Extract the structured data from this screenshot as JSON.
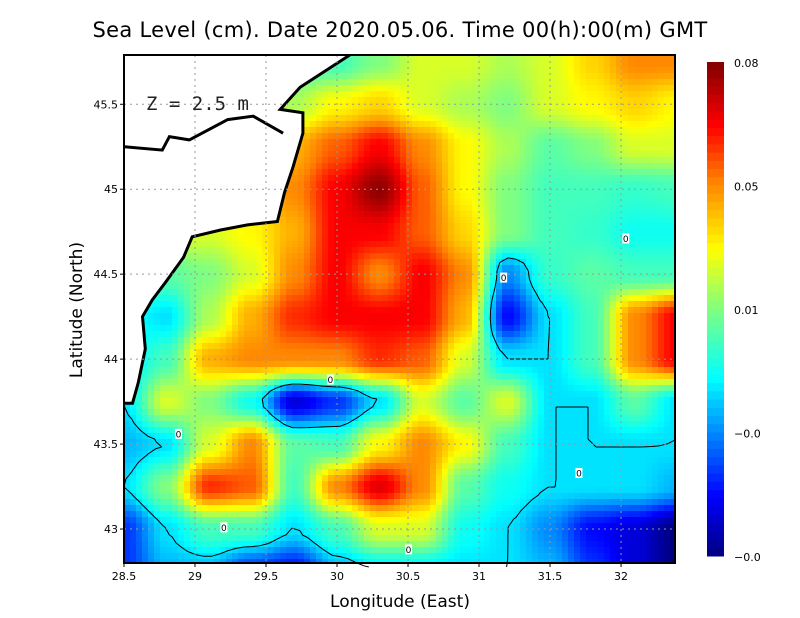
{
  "chart_data": {
    "type": "heatmap",
    "title": "Sea Level (cm). Date 2020.05.06. Time 00(h):00(m) GMT",
    "xlabel": "Longitude (East)",
    "ylabel": "Latitude (North)",
    "annotation": "Z = 2.5 m",
    "xlim": [
      28.5,
      32.38
    ],
    "ylim": [
      42.8,
      45.79
    ],
    "x_ticks": [
      "28.5",
      "29",
      "29.5",
      "30",
      "30.5",
      "31",
      "31.5",
      "32"
    ],
    "x_tick_values": [
      28.5,
      29,
      29.5,
      30,
      30.5,
      31,
      31.5,
      32
    ],
    "y_ticks": [
      "43",
      "43.5",
      "44",
      "44.5",
      "45",
      "45.5"
    ],
    "y_tick_values": [
      43,
      43.5,
      44,
      44.5,
      45,
      45.5
    ],
    "grid": true,
    "colorbar": {
      "labels": [
        "0.08",
        "0.05",
        "0.01",
        "−0.0",
        "−0.0"
      ],
      "range": [
        -0.04,
        0.08
      ],
      "colormap": [
        "#000080",
        "#0000ff",
        "#00ffff",
        "#80ff80",
        "#ffff00",
        "#ff8000",
        "#ff0000",
        "#800000"
      ]
    },
    "grid_lons": [
      28.5,
      28.8,
      29.1,
      29.4,
      29.7,
      30.0,
      30.3,
      30.6,
      30.9,
      31.2,
      31.5,
      31.8,
      32.1,
      32.4
    ],
    "grid_lats": [
      45.75,
      45.5,
      45.25,
      45.0,
      44.75,
      44.5,
      44.25,
      44.0,
      43.75,
      43.5,
      43.25,
      43.0,
      42.75
    ],
    "values": [
      [
        0.012,
        0.012,
        0.012,
        0.012,
        0.012,
        0.012,
        0.02,
        0.03,
        0.03,
        0.025,
        0.03,
        0.04,
        0.05,
        0.05
      ],
      [
        0.02,
        0.02,
        0.02,
        0.02,
        0.025,
        0.035,
        0.04,
        0.03,
        0.025,
        0.02,
        0.03,
        0.035,
        0.04,
        0.035
      ],
      [
        0.03,
        0.03,
        0.03,
        0.035,
        0.045,
        0.055,
        0.065,
        0.05,
        0.035,
        0.025,
        0.015,
        0.02,
        0.03,
        0.03
      ],
      [
        0.035,
        0.035,
        0.035,
        0.04,
        0.05,
        0.065,
        0.078,
        0.055,
        0.035,
        0.02,
        0.012,
        0.012,
        0.01,
        0.012
      ],
      [
        0.03,
        0.03,
        0.03,
        0.035,
        0.045,
        0.065,
        0.065,
        0.055,
        0.04,
        0.02,
        0.012,
        0.01,
        0.005,
        0.005
      ],
      [
        0.015,
        0.015,
        0.02,
        0.03,
        0.05,
        0.065,
        0.05,
        0.065,
        0.05,
        -0.01,
        0.01,
        0.015,
        0.012,
        0.012
      ],
      [
        0.005,
        0.0,
        0.025,
        0.045,
        0.06,
        0.065,
        0.065,
        0.065,
        0.045,
        -0.025,
        0.0,
        0.012,
        0.05,
        0.065
      ],
      [
        0.0,
        0.012,
        0.045,
        0.05,
        0.05,
        0.05,
        0.06,
        0.055,
        0.03,
        0.0,
        0.0,
        0.012,
        0.05,
        0.065
      ],
      [
        0.0,
        0.03,
        0.02,
        0.005,
        -0.03,
        -0.02,
        0.0,
        0.03,
        0.015,
        0.03,
        0.0,
        0.0,
        0.015,
        0.0
      ],
      [
        -0.005,
        0.0,
        0.03,
        0.05,
        0.015,
        0.012,
        0.035,
        0.05,
        0.035,
        0.012,
        0.0,
        0.0,
        0.0,
        0.0
      ],
      [
        0.0,
        0.02,
        0.06,
        0.055,
        0.012,
        0.05,
        0.068,
        0.05,
        0.015,
        0.005,
        0.0,
        0.0,
        0.0,
        -0.005
      ],
      [
        -0.02,
        0.0,
        0.012,
        0.012,
        0.0,
        0.012,
        0.03,
        0.03,
        0.005,
        0.0,
        -0.01,
        -0.025,
        -0.03,
        -0.04
      ],
      [
        -0.02,
        -0.005,
        -0.005,
        -0.02,
        -0.025,
        -0.005,
        0.0,
        0.0,
        0.0,
        0.0,
        -0.005,
        -0.02,
        -0.03,
        -0.04
      ]
    ],
    "contour_level": 0,
    "contour_labels": [
      {
        "text": "0",
        "lon": 29.95,
        "lat": 43.88
      },
      {
        "text": "0",
        "lon": 28.88,
        "lat": 43.56
      },
      {
        "text": "0",
        "lon": 29.2,
        "lat": 43.01
      },
      {
        "text": "0",
        "lon": 30.5,
        "lat": 42.88
      },
      {
        "text": "0",
        "lon": 31.17,
        "lat": 44.48
      },
      {
        "text": "0",
        "lon": 32.03,
        "lat": 44.71
      },
      {
        "text": "0",
        "lon": 31.7,
        "lat": 43.33
      }
    ],
    "land_color": "#ffffff",
    "coastline": [
      [
        30.09,
        45.79
      ],
      [
        29.74,
        45.6
      ],
      [
        29.6,
        45.47
      ],
      [
        29.76,
        45.45
      ],
      [
        29.76,
        45.33
      ],
      [
        29.69,
        45.13
      ],
      [
        29.63,
        44.98
      ],
      [
        29.58,
        44.81
      ],
      [
        29.37,
        44.79
      ],
      [
        29.18,
        44.76
      ],
      [
        28.98,
        44.72
      ],
      [
        28.92,
        44.6
      ],
      [
        28.79,
        44.45
      ],
      [
        28.7,
        44.35
      ],
      [
        28.63,
        44.25
      ],
      [
        28.65,
        44.06
      ],
      [
        28.6,
        43.86
      ],
      [
        28.56,
        43.74
      ],
      [
        28.5,
        43.74
      ]
    ],
    "lake_shore": [
      [
        28.5,
        45.25
      ],
      [
        28.77,
        45.23
      ],
      [
        28.82,
        45.31
      ],
      [
        28.96,
        45.29
      ],
      [
        29.23,
        45.41
      ],
      [
        29.41,
        45.43
      ],
      [
        29.62,
        45.33
      ]
    ]
  }
}
